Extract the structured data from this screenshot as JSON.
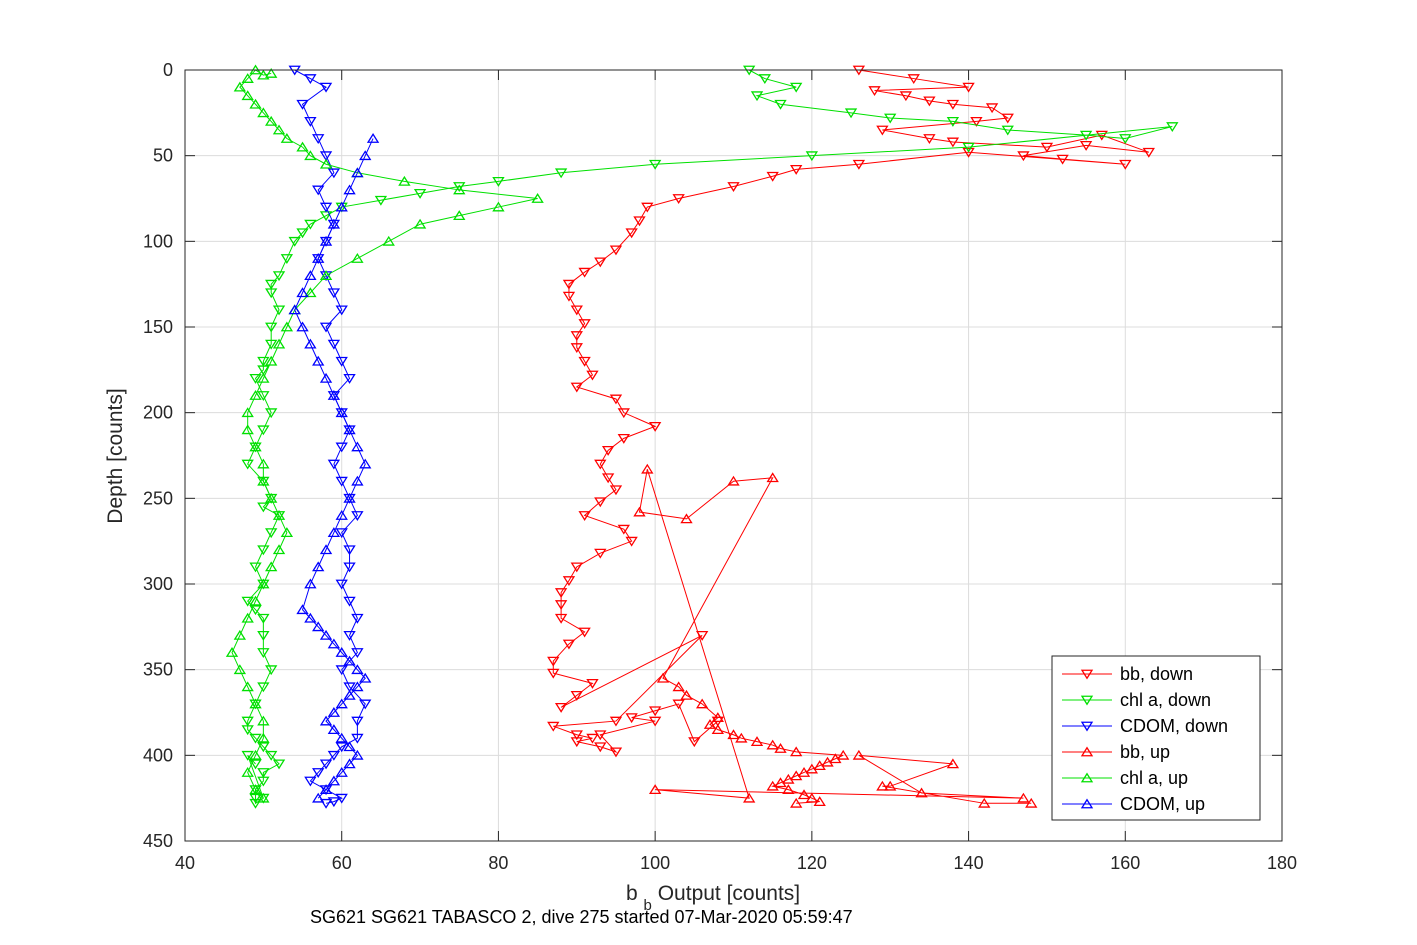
{
  "chart_data": {
    "type": "scatter",
    "xlabel_main": "b",
    "xlabel_sub": "b",
    "xlabel_rest": " Output [counts]",
    "ylabel": "Depth [counts]",
    "caption": "SG621 SG621 TABASCO 2, dive 275 started 07-Mar-2020 05:59:47",
    "xlim": [
      40,
      180
    ],
    "ylim": [
      0,
      450
    ],
    "y_reversed": true,
    "grid": true,
    "xticks": [
      "40",
      "60",
      "80",
      "100",
      "120",
      "140",
      "160",
      "180"
    ],
    "yticks": [
      "0",
      "50",
      "100",
      "150",
      "200",
      "250",
      "300",
      "350",
      "400",
      "450"
    ],
    "legend_position": "bottom-right",
    "series": [
      {
        "name": "bb, down",
        "color": "#ff0000",
        "marker": "down",
        "x": [
          126,
          133,
          140,
          128,
          132,
          135,
          138,
          143,
          145,
          141,
          129,
          135,
          138,
          150,
          157,
          163,
          155,
          147,
          152,
          160,
          140,
          126,
          118,
          115,
          110,
          103,
          99,
          98,
          97,
          95,
          93,
          91,
          89,
          89,
          90,
          91,
          90,
          90,
          91,
          92,
          90,
          95,
          96,
          100,
          96,
          94,
          93,
          94,
          95,
          93,
          91,
          96,
          97,
          93,
          90,
          89,
          88,
          88,
          88,
          91,
          89,
          87,
          87,
          92,
          90,
          88,
          106,
          95,
          87,
          90,
          92,
          90,
          93,
          95,
          93,
          100,
          97,
          100,
          103,
          105,
          108
        ],
        "y": [
          0,
          5,
          10,
          12,
          15,
          18,
          20,
          22,
          28,
          30,
          35,
          40,
          42,
          45,
          38,
          48,
          44,
          50,
          52,
          55,
          48,
          55,
          58,
          62,
          68,
          75,
          80,
          88,
          95,
          105,
          112,
          118,
          125,
          132,
          140,
          148,
          155,
          162,
          170,
          178,
          185,
          192,
          200,
          208,
          215,
          222,
          230,
          238,
          245,
          252,
          260,
          268,
          275,
          282,
          290,
          298,
          305,
          312,
          320,
          328,
          335,
          345,
          352,
          358,
          365,
          372,
          330,
          380,
          383,
          388,
          390,
          392,
          395,
          398,
          388,
          380,
          378,
          374,
          370,
          392,
          380
        ]
      },
      {
        "name": "chl a, down",
        "color": "#00e000",
        "marker": "down",
        "x": [
          112,
          114,
          118,
          113,
          116,
          125,
          130,
          138,
          145,
          155,
          160,
          166,
          140,
          120,
          100,
          88,
          80,
          75,
          70,
          65,
          60,
          58,
          56,
          55,
          54,
          53,
          52,
          51,
          51,
          52,
          51,
          51,
          50,
          50,
          49,
          50,
          51,
          50,
          49,
          48,
          50,
          51,
          50,
          52,
          51,
          50,
          49,
          50,
          48,
          49,
          50,
          50,
          50,
          51,
          50,
          49,
          48,
          48,
          49,
          50,
          51,
          52,
          50,
          50,
          49,
          49,
          49,
          50,
          48,
          49
        ],
        "y": [
          0,
          5,
          10,
          15,
          20,
          25,
          28,
          30,
          35,
          38,
          40,
          33,
          45,
          50,
          55,
          60,
          65,
          68,
          72,
          76,
          80,
          85,
          90,
          95,
          100,
          110,
          120,
          125,
          130,
          140,
          150,
          160,
          170,
          175,
          180,
          190,
          200,
          210,
          220,
          230,
          240,
          250,
          255,
          260,
          270,
          280,
          290,
          300,
          310,
          315,
          320,
          330,
          340,
          350,
          360,
          370,
          380,
          385,
          390,
          395,
          400,
          405,
          410,
          415,
          420,
          425,
          428,
          425,
          400,
          405
        ]
      },
      {
        "name": "CDOM, down",
        "color": "#0000ff",
        "marker": "down",
        "x": [
          54,
          56,
          58,
          55,
          56,
          57,
          58,
          59,
          57,
          58,
          59,
          58,
          57,
          58,
          59,
          60,
          58,
          59,
          60,
          61,
          59,
          60,
          61,
          60,
          59,
          60,
          61,
          62,
          60,
          61,
          61,
          60,
          61,
          62,
          61,
          62,
          60,
          61,
          63,
          62,
          62,
          60,
          59,
          58,
          57,
          56,
          58,
          60,
          59,
          58
        ],
        "y": [
          0,
          5,
          10,
          20,
          30,
          40,
          50,
          60,
          70,
          80,
          90,
          100,
          110,
          120,
          130,
          140,
          150,
          160,
          170,
          180,
          190,
          200,
          210,
          220,
          230,
          240,
          250,
          260,
          270,
          280,
          290,
          300,
          310,
          320,
          330,
          340,
          350,
          360,
          370,
          380,
          390,
          395,
          400,
          405,
          410,
          415,
          420,
          425,
          427,
          428
        ]
      },
      {
        "name": "bb, up",
        "color": "#ff0000",
        "marker": "up",
        "x": [
          118,
          121,
          120,
          119,
          117,
          115,
          116,
          117,
          118,
          119,
          120,
          121,
          122,
          123,
          124,
          118,
          116,
          115,
          113,
          111,
          110,
          108,
          107,
          108,
          106,
          104,
          103,
          101,
          115,
          110,
          104,
          98,
          99,
          112,
          100,
          147,
          134,
          126,
          138,
          130,
          129,
          142,
          148
        ],
        "y": [
          428,
          427,
          425,
          423,
          420,
          418,
          416,
          414,
          412,
          410,
          408,
          406,
          404,
          402,
          400,
          398,
          396,
          394,
          392,
          390,
          388,
          385,
          382,
          378,
          370,
          365,
          360,
          355,
          238,
          240,
          262,
          258,
          233,
          425,
          420,
          425,
          422,
          400,
          405,
          418,
          418,
          428,
          428
        ]
      },
      {
        "name": "chl a, up",
        "color": "#00e000",
        "marker": "up",
        "x": [
          50,
          49,
          48,
          49,
          50,
          50,
          49,
          48,
          47,
          46,
          47,
          48,
          49,
          50,
          51,
          52,
          53,
          52,
          51,
          50,
          50,
          49,
          48,
          48,
          49,
          50,
          51,
          52,
          53,
          54,
          56,
          58,
          62,
          66,
          70,
          75,
          80,
          85,
          75,
          68,
          62,
          58,
          56,
          55,
          53,
          52,
          51,
          50,
          49,
          48,
          47,
          48,
          49,
          50,
          51
        ],
        "y": [
          425,
          420,
          410,
          400,
          390,
          380,
          370,
          360,
          350,
          340,
          330,
          320,
          310,
          300,
          290,
          280,
          270,
          260,
          250,
          240,
          230,
          220,
          210,
          200,
          190,
          180,
          170,
          160,
          150,
          140,
          130,
          120,
          110,
          100,
          90,
          85,
          80,
          75,
          70,
          65,
          60,
          55,
          50,
          45,
          40,
          35,
          30,
          25,
          20,
          15,
          10,
          5,
          0,
          3,
          2
        ]
      },
      {
        "name": "CDOM, up",
        "color": "#0000ff",
        "marker": "up",
        "x": [
          57,
          58,
          59,
          60,
          61,
          62,
          61,
          60,
          59,
          58,
          59,
          60,
          61,
          62,
          63,
          62,
          61,
          60,
          59,
          58,
          57,
          56,
          55,
          56,
          57,
          58,
          59,
          60,
          61,
          62,
          63,
          62,
          61,
          60,
          59,
          58,
          57,
          56,
          55,
          54,
          55,
          56,
          57,
          58,
          59,
          60,
          61,
          62,
          63,
          64
        ],
        "y": [
          425,
          420,
          415,
          410,
          405,
          400,
          395,
          390,
          385,
          380,
          375,
          370,
          365,
          360,
          355,
          350,
          345,
          340,
          335,
          330,
          325,
          320,
          315,
          300,
          290,
          280,
          270,
          260,
          250,
          240,
          230,
          220,
          210,
          200,
          190,
          180,
          170,
          160,
          150,
          140,
          130,
          120,
          110,
          100,
          90,
          80,
          70,
          60,
          50,
          40
        ]
      }
    ]
  }
}
